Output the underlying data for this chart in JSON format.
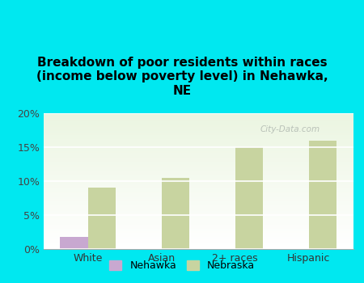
{
  "title": "Breakdown of poor residents within races\n(income below poverty level) in Nehawka,\nNE",
  "categories": [
    "White",
    "Asian",
    "2+ races",
    "Hispanic"
  ],
  "nehawka_values": [
    1.8,
    0,
    0,
    0
  ],
  "nebraska_values": [
    9.0,
    10.5,
    15.0,
    16.0
  ],
  "nehawka_color": "#c8a8d0",
  "nebraska_color": "#c8d4a0",
  "bg_color": "#00e8f0",
  "ylim": [
    0,
    20
  ],
  "yticks": [
    0,
    5,
    10,
    15,
    20
  ],
  "ytick_labels": [
    "0%",
    "5%",
    "10%",
    "15%",
    "20%"
  ],
  "bar_width": 0.38,
  "watermark": "City-Data.com",
  "legend_nehawka": "Nehawka",
  "legend_nebraska": "Nebraska",
  "title_fontsize": 11,
  "tick_fontsize": 9
}
